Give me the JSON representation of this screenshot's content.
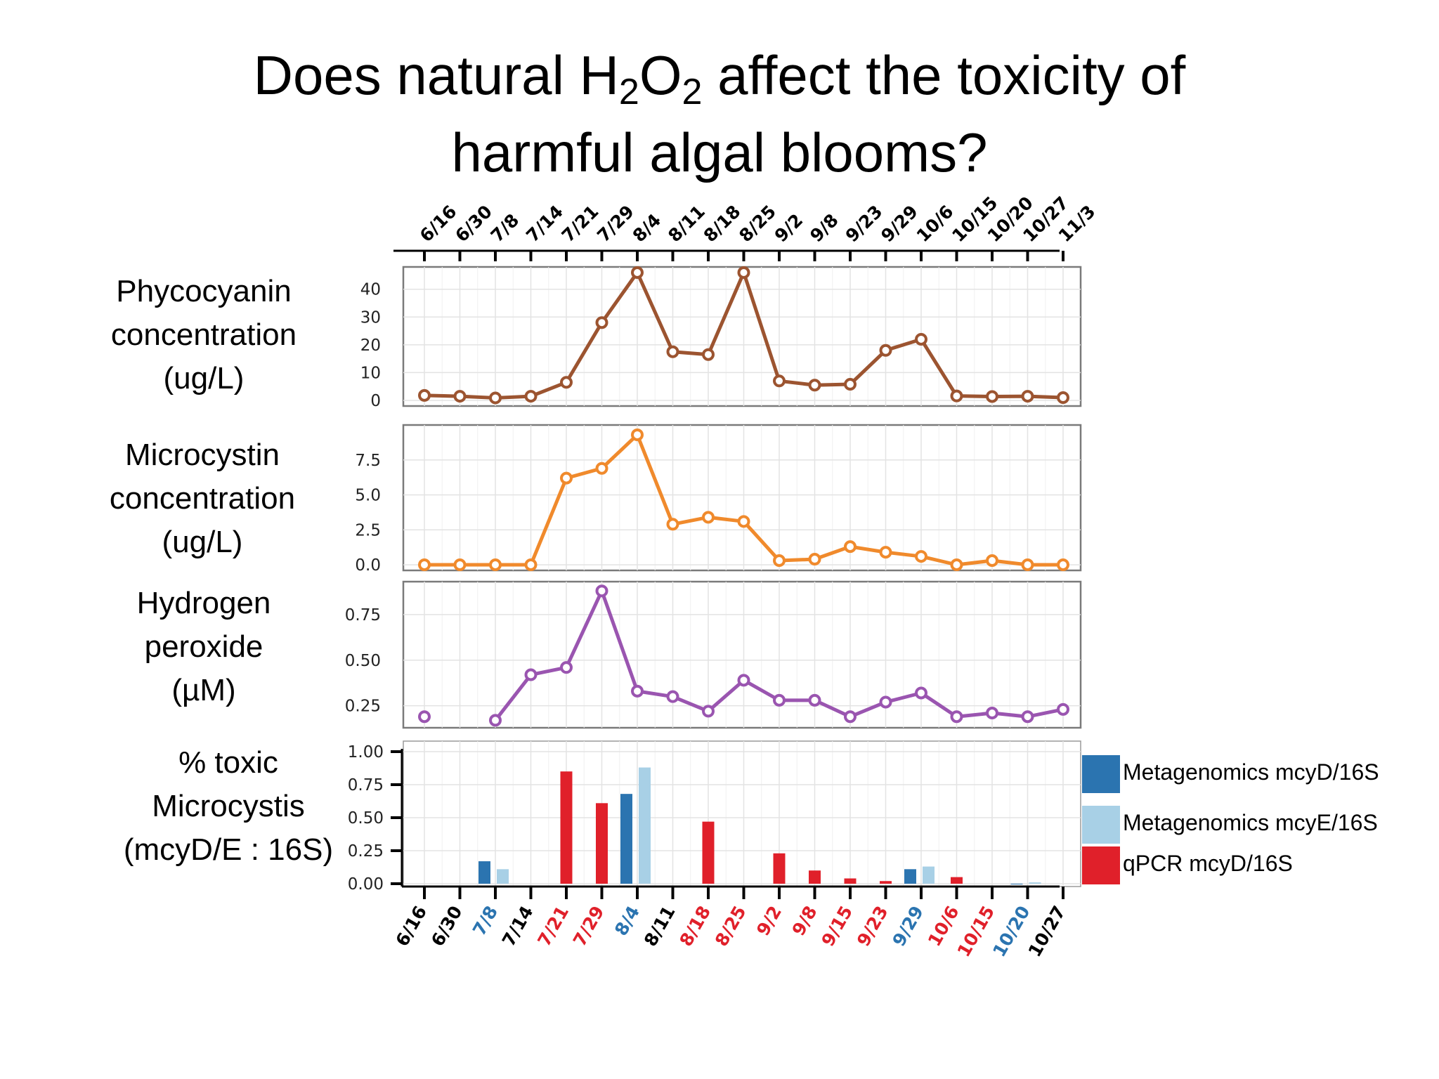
{
  "title": {
    "part1": "Does natural H",
    "sub1": "2",
    "part2": "O",
    "sub2": "2",
    "part3": " affect the toxicity of",
    "line2": "harmful algal blooms?"
  },
  "row_labels": {
    "phycocyanin": [
      "Phycocyanin",
      "concentration",
      "(ug/L)"
    ],
    "microcystin": [
      "Microcystin",
      "concentration",
      "(ug/L)"
    ],
    "peroxide": [
      "Hydrogen",
      "peroxide",
      "(µM)"
    ],
    "toxic": [
      "% toxic",
      "Microcystis",
      "(mcyD/E : 16S)"
    ]
  },
  "colors": {
    "phycocyanin": "#9c5430",
    "microcystin": "#f08a2c",
    "peroxide": "#9a55b0",
    "meta_mcyD": "#2b74b0",
    "meta_mcyE": "#a8d0e6",
    "qpcr_mcyD": "#e0202a",
    "date_black": "#000000"
  },
  "chart_data": [
    {
      "type": "line",
      "name": "phycocyanin",
      "x": [
        "6/16",
        "6/30",
        "7/8",
        "7/14",
        "7/21",
        "7/29",
        "8/4",
        "8/11",
        "8/18",
        "8/25",
        "9/2",
        "9/8",
        "9/23",
        "9/29",
        "10/6",
        "10/15",
        "10/20",
        "10/27",
        "11/3"
      ],
      "values": [
        1.8,
        1.5,
        0.9,
        1.5,
        6.5,
        28,
        46,
        17.5,
        16.5,
        46,
        7,
        5.5,
        5.8,
        18,
        22,
        1.6,
        1.4,
        1.5,
        1
      ],
      "yticks": [
        0,
        10,
        20,
        30,
        40
      ],
      "ylim": [
        0,
        46
      ],
      "grid": true
    },
    {
      "type": "line",
      "name": "microcystin",
      "x": [
        "6/16",
        "6/30",
        "7/8",
        "7/14",
        "7/21",
        "7/29",
        "8/4",
        "8/11",
        "8/18",
        "8/25",
        "9/2",
        "9/8",
        "9/23",
        "9/29",
        "10/6",
        "10/15",
        "10/20",
        "10/27",
        "11/3"
      ],
      "values": [
        0,
        0,
        0,
        0,
        6.2,
        6.9,
        9.3,
        2.9,
        3.4,
        3.1,
        0.3,
        0.4,
        1.3,
        0.9,
        0.6,
        0,
        0.3,
        0,
        0
      ],
      "yticks": [
        0.0,
        2.5,
        5.0,
        7.5
      ],
      "ytick_labels": [
        "0.0",
        "2.5",
        "5.0",
        "7.5"
      ],
      "ylim": [
        0,
        9.6
      ],
      "grid": true
    },
    {
      "type": "line",
      "name": "peroxide",
      "x": [
        "6/16",
        "6/30",
        "7/8",
        "7/14",
        "7/21",
        "7/29",
        "8/4",
        "8/11",
        "8/18",
        "8/25",
        "9/2",
        "9/8",
        "9/23",
        "9/29",
        "10/6",
        "10/15",
        "10/20",
        "10/27",
        "11/3"
      ],
      "values": [
        0.19,
        null,
        0.17,
        0.42,
        0.46,
        0.88,
        0.33,
        0.3,
        0.22,
        0.39,
        0.28,
        0.28,
        0.19,
        0.27,
        0.32,
        0.19,
        0.21,
        0.19,
        0.23
      ],
      "yticks": [
        0.25,
        0.5,
        0.75
      ],
      "ytick_labels": [
        "0.25",
        "0.50",
        "0.75"
      ],
      "ylim": [
        0.16,
        0.9
      ],
      "grid": true
    },
    {
      "type": "bar",
      "name": "toxic",
      "categories": [
        "6/16",
        "6/30",
        "7/8",
        "7/14",
        "7/21",
        "7/29",
        "8/4",
        "8/11",
        "8/18",
        "8/25",
        "9/2",
        "9/8",
        "9/15",
        "9/23",
        "9/29",
        "10/6",
        "10/15",
        "10/20",
        "10/27"
      ],
      "category_colors": [
        "black",
        "black",
        "meta_mcyD",
        "black",
        "qpcr_mcyD",
        "qpcr_mcyD",
        "meta_mcyD",
        "black",
        "qpcr_mcyD",
        "qpcr_mcyD",
        "qpcr_mcyD",
        "qpcr_mcyD",
        "qpcr_mcyD",
        "qpcr_mcyD",
        "meta_mcyD",
        "qpcr_mcyD",
        "qpcr_mcyD",
        "meta_mcyD",
        "black"
      ],
      "series": [
        {
          "name": "Metagenomics mcyD/16S",
          "color_key": "meta_mcyD",
          "values": [
            null,
            null,
            0.17,
            null,
            null,
            null,
            0.68,
            null,
            null,
            null,
            null,
            null,
            null,
            null,
            0.11,
            null,
            null,
            0,
            null
          ]
        },
        {
          "name": "Metagenomics mcyE/16S",
          "color_key": "meta_mcyE",
          "values": [
            null,
            null,
            0.11,
            null,
            null,
            null,
            0.88,
            null,
            null,
            null,
            null,
            null,
            null,
            null,
            0.13,
            null,
            null,
            0.01,
            null
          ]
        },
        {
          "name": "qPCR mcyD/16S",
          "color_key": "qpcr_mcyD",
          "values": [
            null,
            null,
            null,
            null,
            0.85,
            0.61,
            null,
            null,
            0.47,
            null,
            0.23,
            0.1,
            0.04,
            0.02,
            null,
            0.05,
            null,
            null,
            null
          ]
        }
      ],
      "yticks": [
        0,
        0.25,
        0.5,
        0.75,
        1.0
      ],
      "ytick_labels": [
        "0.00",
        "0.25",
        "0.50",
        "0.75",
        "1.00"
      ],
      "ylim": [
        0,
        1.0
      ],
      "grid": true,
      "legend_position": "right"
    }
  ]
}
